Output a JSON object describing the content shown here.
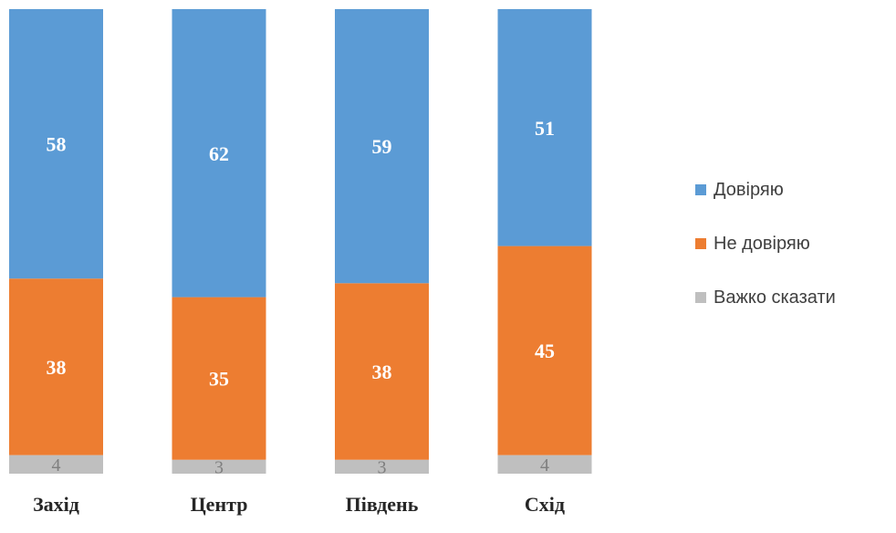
{
  "chart_data": {
    "type": "bar",
    "stacked": true,
    "normalized_percent": true,
    "categories": [
      "Захід",
      "Центр",
      "Південь",
      "Схід"
    ],
    "series": [
      {
        "name": "Важко сказати",
        "values": [
          4,
          3,
          3,
          4
        ],
        "color": "#bfbfbf"
      },
      {
        "name": "Не довіряю",
        "values": [
          38,
          35,
          38,
          45
        ],
        "color": "#ed7d31"
      },
      {
        "name": "Довіряю",
        "values": [
          58,
          62,
          59,
          51
        ],
        "color": "#5b9bd5"
      }
    ],
    "legend_order": [
      "Довіряю",
      "Не довіряю",
      "Важко сказати"
    ],
    "legend_position": "right",
    "ylim": [
      0,
      100
    ],
    "grid": false,
    "title": "",
    "xlabel": "",
    "ylabel": ""
  }
}
